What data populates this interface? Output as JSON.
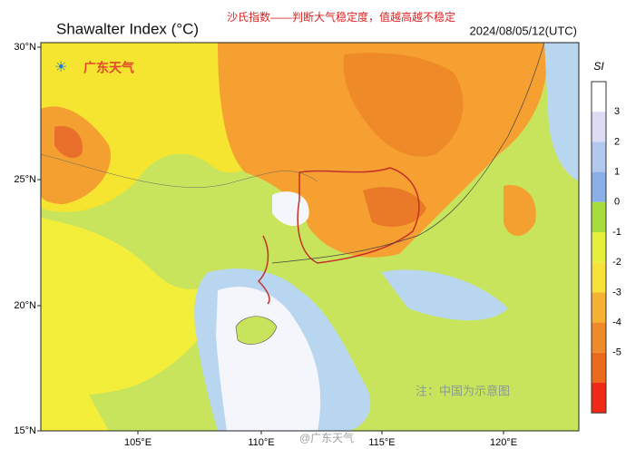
{
  "header": {
    "title": "Shawalter Index (°C)",
    "subtitle": "沙氏指数——判断大气稳定度，值越高越不稳定",
    "time": "2024/08/05/12(UTC)"
  },
  "logo": "广东天气",
  "map": {
    "lat_labels": [
      "30°N",
      "25°N",
      "20°N",
      "15°N"
    ],
    "lon_labels": [
      "105°E",
      "110°E",
      "115°E",
      "120°E"
    ],
    "note": "注：中国为示意图"
  },
  "colorbar": {
    "label": "SI",
    "ticks": [
      3,
      2,
      1,
      0,
      -1,
      -2,
      -3,
      -4,
      -5
    ]
  },
  "footer": {
    "watermark": "@广东天气"
  }
}
